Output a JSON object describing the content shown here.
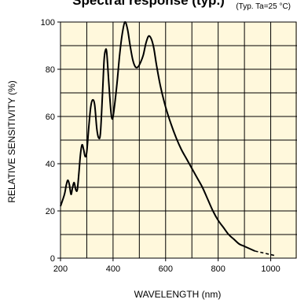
{
  "chart_data": {
    "type": "line",
    "title": "Spectral response (typ.)",
    "annotation": "(Typ. Ta=25 °C)",
    "xlabel": "WAVELENGTH (nm)",
    "ylabel": "RELATIVE SENSITIVITY (%)",
    "xlim": [
      200,
      1100
    ],
    "ylim": [
      0,
      100
    ],
    "x_ticks": [
      200,
      400,
      600,
      800,
      1000
    ],
    "y_ticks": [
      0,
      20,
      40,
      60,
      80,
      100
    ],
    "grid": true,
    "plot_background": "#fff8dc",
    "line_color": "#000000",
    "series": [
      {
        "values_solid": [
          [
            200,
            22
          ],
          [
            215,
            27
          ],
          [
            222,
            31
          ],
          [
            228,
            33
          ],
          [
            234,
            31
          ],
          [
            240,
            27
          ],
          [
            246,
            30
          ],
          [
            252,
            32
          ],
          [
            258,
            29
          ],
          [
            264,
            29
          ],
          [
            270,
            36
          ],
          [
            276,
            44
          ],
          [
            282,
            48
          ],
          [
            288,
            46
          ],
          [
            294,
            43
          ],
          [
            300,
            45
          ],
          [
            308,
            56
          ],
          [
            315,
            64
          ],
          [
            322,
            67
          ],
          [
            330,
            65
          ],
          [
            338,
            55
          ],
          [
            345,
            51
          ],
          [
            352,
            53
          ],
          [
            360,
            70
          ],
          [
            366,
            84
          ],
          [
            371,
            88
          ],
          [
            376,
            87
          ],
          [
            384,
            74
          ],
          [
            392,
            62
          ],
          [
            398,
            59
          ],
          [
            405,
            64
          ],
          [
            415,
            74
          ],
          [
            425,
            86
          ],
          [
            435,
            95
          ],
          [
            445,
            100
          ],
          [
            455,
            97
          ],
          [
            465,
            90
          ],
          [
            475,
            84
          ],
          [
            485,
            81
          ],
          [
            495,
            81
          ],
          [
            505,
            83
          ],
          [
            515,
            86
          ],
          [
            525,
            91
          ],
          [
            535,
            94
          ],
          [
            545,
            93
          ],
          [
            555,
            89
          ],
          [
            565,
            82
          ],
          [
            580,
            73
          ],
          [
            600,
            64
          ],
          [
            620,
            57
          ],
          [
            640,
            51
          ],
          [
            660,
            46
          ],
          [
            680,
            42
          ],
          [
            700,
            38
          ],
          [
            720,
            34
          ],
          [
            740,
            30
          ],
          [
            760,
            25
          ],
          [
            780,
            20
          ],
          [
            800,
            16
          ],
          [
            820,
            13
          ],
          [
            840,
            10
          ],
          [
            860,
            8
          ],
          [
            880,
            6
          ],
          [
            900,
            5
          ],
          [
            920,
            4
          ],
          [
            940,
            3
          ]
        ],
        "values_dashed": [
          [
            940,
            3
          ],
          [
            960,
            2.5
          ],
          [
            980,
            2
          ],
          [
            1000,
            1.5
          ],
          [
            1020,
            1
          ]
        ]
      }
    ]
  }
}
